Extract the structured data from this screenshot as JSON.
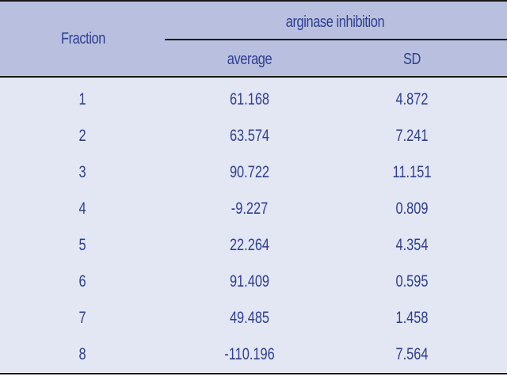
{
  "table": {
    "headers": {
      "fraction": "Fraction",
      "group": "arginase inhibition",
      "average": "average",
      "sd": "SD"
    },
    "rows": [
      {
        "fraction": "1",
        "average": "61.168",
        "sd": "4.872"
      },
      {
        "fraction": "2",
        "average": "63.574",
        "sd": "7.241"
      },
      {
        "fraction": "3",
        "average": "90.722",
        "sd": "11.151"
      },
      {
        "fraction": "4",
        "average": "-9.227",
        "sd": "0.809"
      },
      {
        "fraction": "5",
        "average": "22.264",
        "sd": "4.354"
      },
      {
        "fraction": "6",
        "average": "91.409",
        "sd": "0.595"
      },
      {
        "fraction": "7",
        "average": "49.485",
        "sd": "1.458"
      },
      {
        "fraction": "8",
        "average": "-110.196",
        "sd": "7.564"
      }
    ]
  },
  "colors": {
    "header_bg": "#b9c0df",
    "body_bg": "#e3e6f3",
    "text": "#2e3f8f",
    "rule": "#1a1a1a"
  }
}
